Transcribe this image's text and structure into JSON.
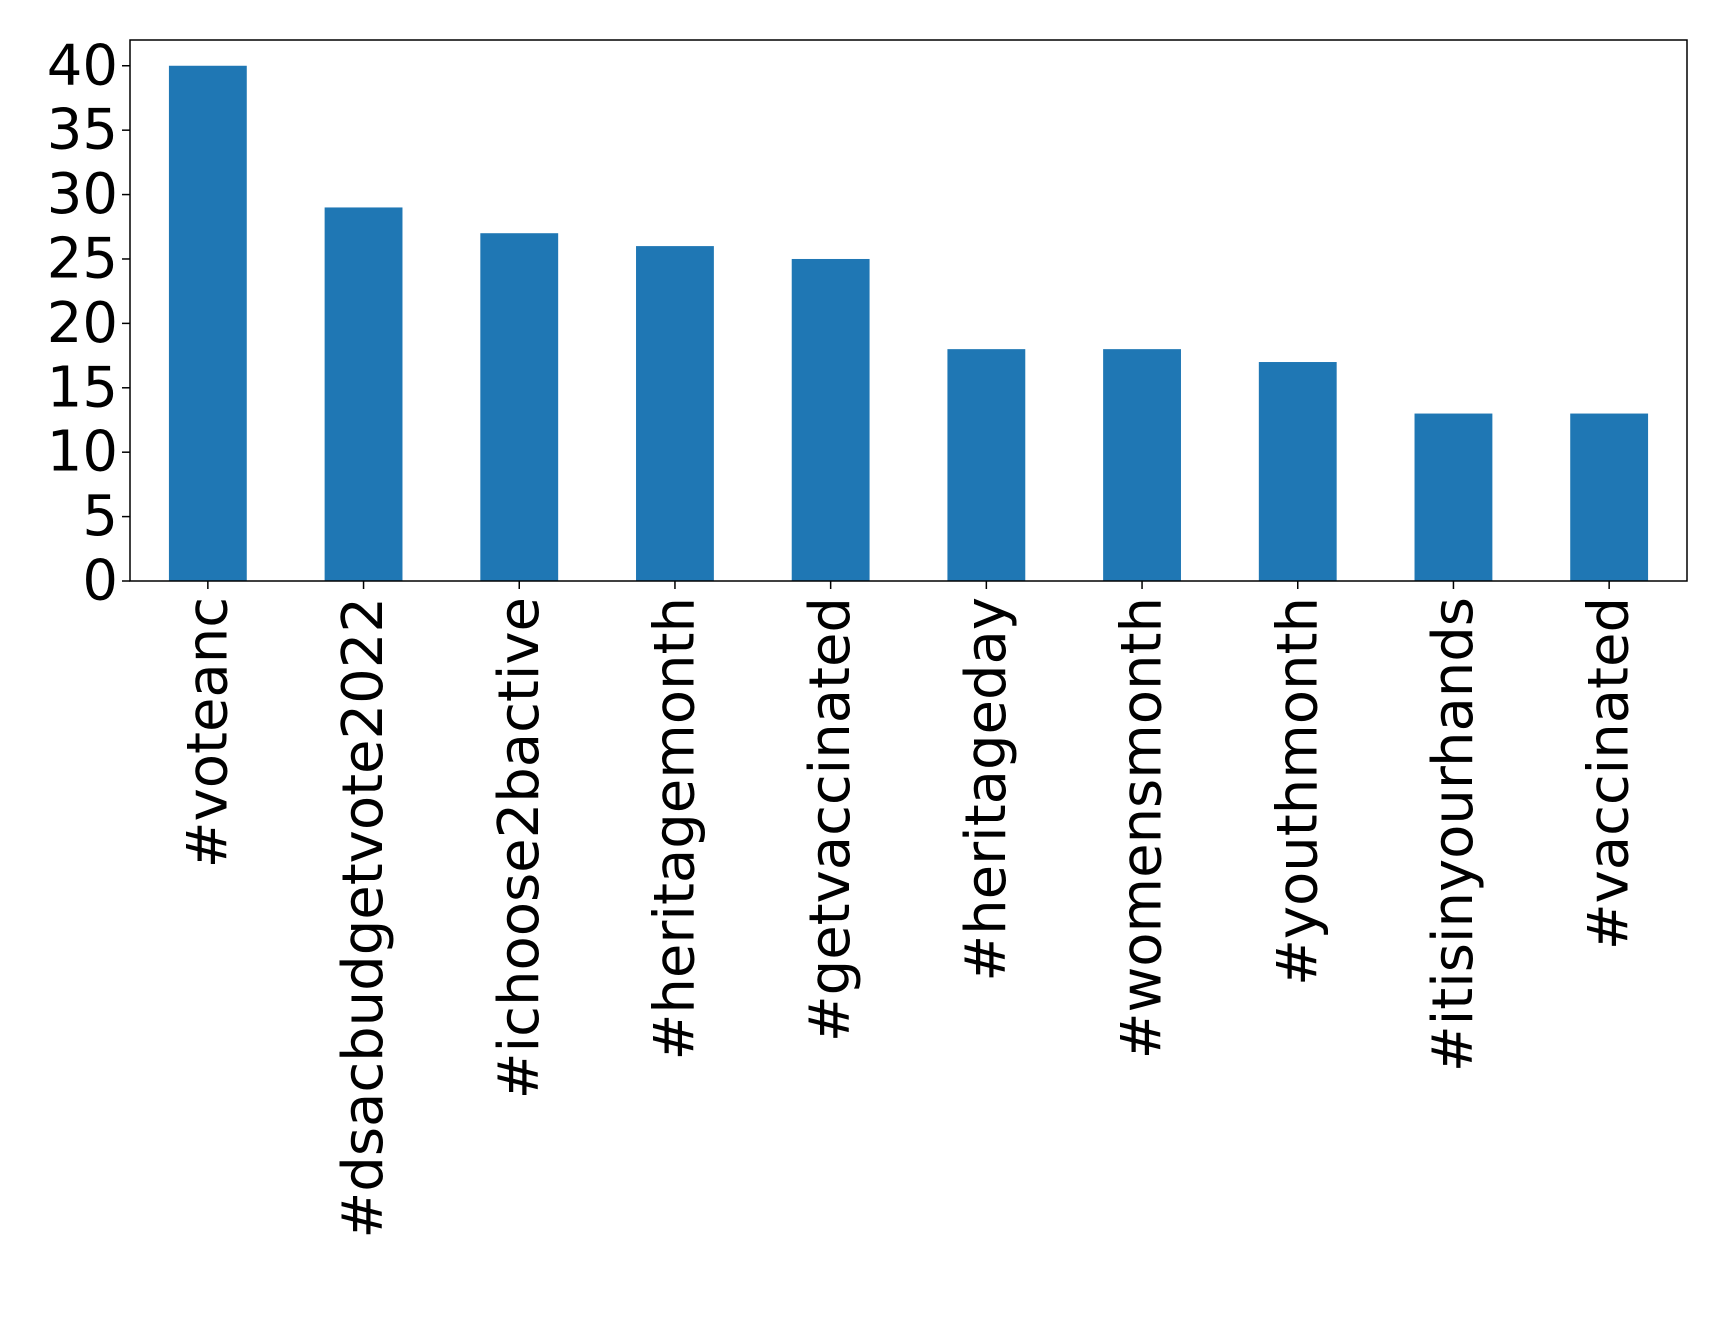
{
  "chart_data": {
    "type": "bar",
    "categories": [
      "#voteanc",
      "#dsacbudgetvote2022",
      "#ichoose2bactive",
      "#heritagemonth",
      "#getvaccinated",
      "#heritageday",
      "#womensmonth",
      "#youthmonth",
      "#itisinyourhands",
      "#vaccinated"
    ],
    "values": [
      40,
      29,
      27,
      26,
      25,
      18,
      18,
      17,
      13,
      13
    ],
    "color": "#1f77b4",
    "ylim": [
      0,
      42
    ],
    "yticks": [
      0,
      5,
      10,
      15,
      20,
      25,
      30,
      35,
      40
    ],
    "grid": false
  }
}
